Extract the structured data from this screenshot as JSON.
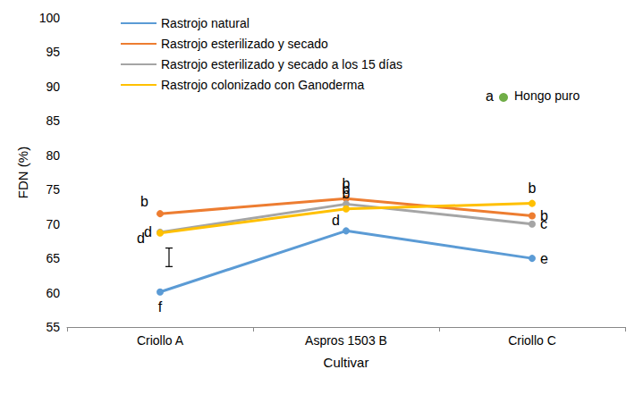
{
  "chart_data": {
    "type": "line",
    "x_label": "Cultivar",
    "y_label": "FDN (%)",
    "categories": [
      "Criollo A",
      "Aspros 1503 B",
      "Criollo C"
    ],
    "ylim": [
      55,
      100
    ],
    "yticks": [
      55,
      60,
      65,
      70,
      75,
      80,
      85,
      90,
      95,
      100
    ],
    "grid": false,
    "legend": "top-left",
    "marker": "circle",
    "series": [
      {
        "name": "Rastrojo natural",
        "color": "#5B9BD5",
        "values": [
          60.1,
          69.0,
          65.0
        ],
        "letters": [
          "f",
          "d",
          "e"
        ]
      },
      {
        "name": "Rastrojo esterilizado y secado",
        "color": "#ED7D31",
        "values": [
          71.5,
          73.7,
          71.2
        ],
        "letters": [
          "b",
          "b",
          "b"
        ]
      },
      {
        "name": "Rastrojo esterilizado y secado a los 15 días",
        "color": "#A5A5A5",
        "values": [
          68.8,
          72.9,
          70.0
        ],
        "letters": [
          "d",
          "b",
          "c"
        ]
      },
      {
        "name": "Rastrojo colonizado con Ganoderma",
        "color": "#FFC000",
        "values": [
          68.7,
          72.2,
          73.0
        ],
        "letters": [
          "d",
          "b",
          "b"
        ]
      }
    ],
    "error_bar": {
      "category": "Criollo A",
      "low": 63.8,
      "high": 66.5
    },
    "annotation": {
      "text": "Hongo puro",
      "letter": "a",
      "color": "#70AD47"
    }
  }
}
